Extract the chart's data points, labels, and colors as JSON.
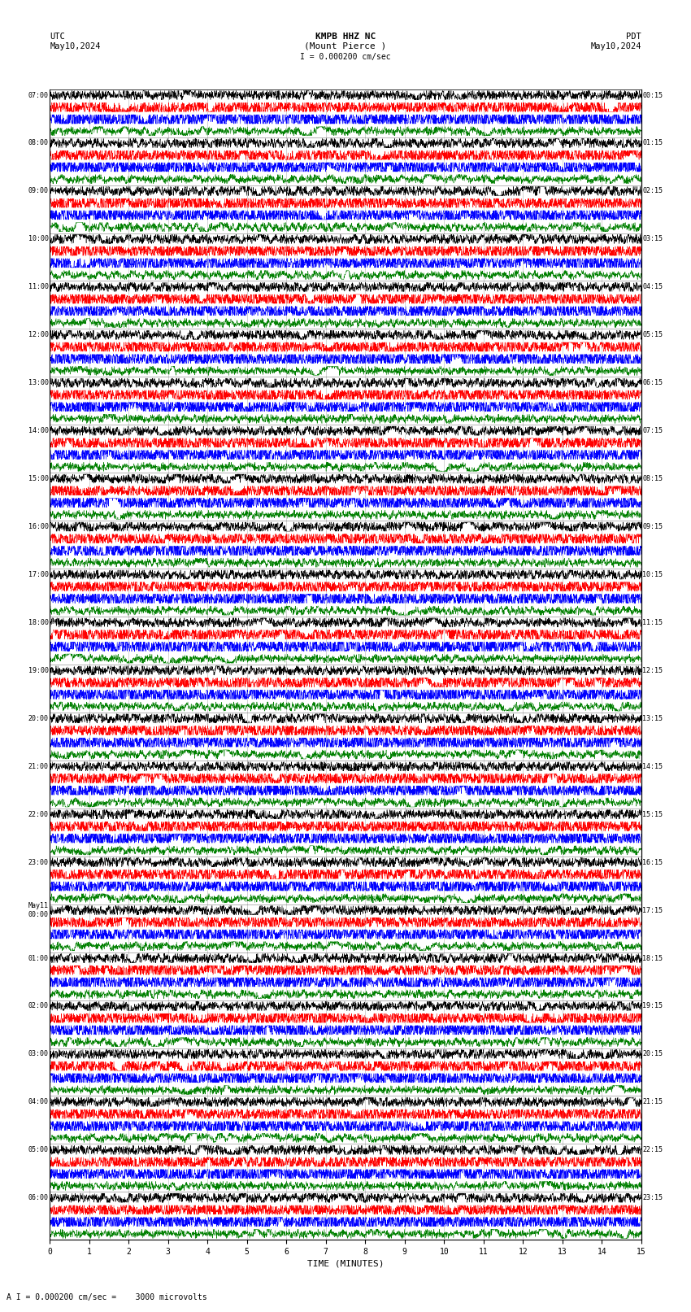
{
  "title_center": "KMPB HHZ NC\n(Mount Pierce )",
  "title_left_utc": "UTC\nMay10,2024",
  "title_right_pdt": "PDT\nMay10,2024",
  "scale_label": "I = 0.000200 cm/sec",
  "bottom_label": "A I = 0.000200 cm/sec =    3000 microvolts",
  "xlabel": "TIME (MINUTES)",
  "time_minutes": 15,
  "num_rows": 24,
  "traces_per_row": 4,
  "colors": [
    "black",
    "red",
    "blue",
    "green"
  ],
  "left_labels_utc": [
    "07:00",
    "08:00",
    "09:00",
    "10:00",
    "11:00",
    "12:00",
    "13:00",
    "14:00",
    "15:00",
    "16:00",
    "17:00",
    "18:00",
    "19:00",
    "20:00",
    "21:00",
    "22:00",
    "23:00",
    "May11\n00:00",
    "01:00",
    "02:00",
    "03:00",
    "04:00",
    "05:00",
    "06:00"
  ],
  "right_labels_pdt": [
    "00:15",
    "01:15",
    "02:15",
    "03:15",
    "04:15",
    "05:15",
    "06:15",
    "07:15",
    "08:15",
    "09:15",
    "10:15",
    "11:15",
    "12:15",
    "13:15",
    "14:15",
    "15:15",
    "16:15",
    "17:15",
    "18:15",
    "19:15",
    "20:15",
    "21:15",
    "22:15",
    "23:15"
  ],
  "background_color": "white",
  "noise_scale": [
    0.2,
    0.3,
    0.35,
    0.15
  ],
  "seed": 42
}
